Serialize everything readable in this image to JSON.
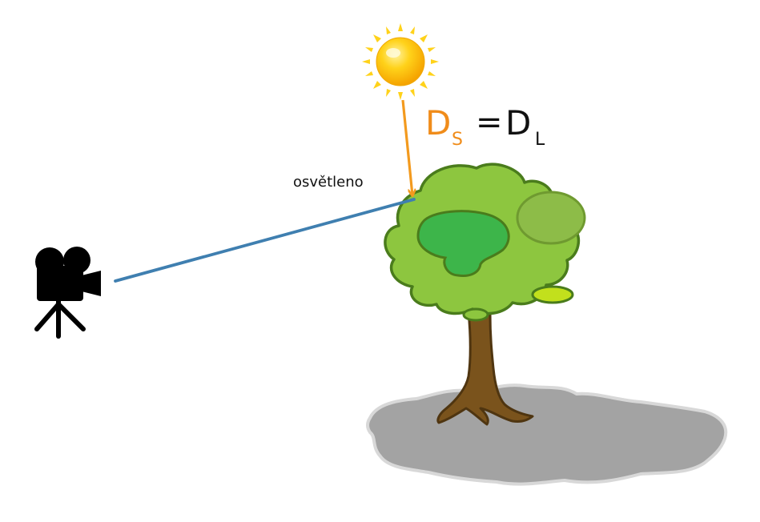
{
  "labels": {
    "lit": "osvětleno"
  },
  "equation": {
    "lhs_main": "D",
    "lhs_sub": "S",
    "operator": "=",
    "rhs_main": "D",
    "rhs_sub": "L"
  },
  "colors": {
    "sun_ray": "#f39a1e",
    "view_ray": "#3f7fb0",
    "lhs": "#f08c1a",
    "rhs": "#111111",
    "foliage": "#8dc63f",
    "foliage_dark": "#3db54a",
    "foliage_outline": "#4a7c1c",
    "trunk": "#7a531c",
    "ground": "#a3a3a3",
    "sun": "#ffd21a"
  },
  "icons": [
    "sun-icon",
    "tree-icon",
    "camera-icon",
    "ground-shadow"
  ]
}
